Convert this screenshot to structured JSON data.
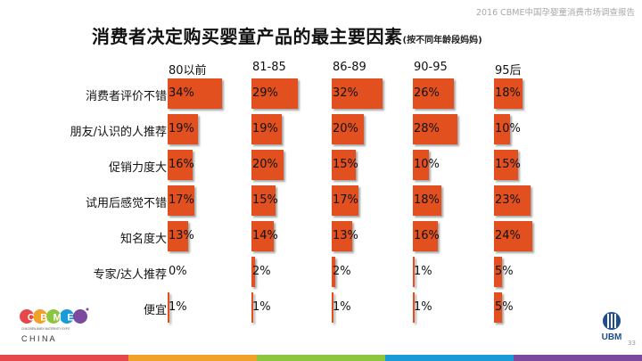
{
  "header": {
    "caption": "2016 CBME中国孕婴童消费市场调查报告",
    "title": "消费者决定购买婴童产品的最主要因素",
    "subtitle": "(按不同年龄段妈妈)"
  },
  "chart_data": {
    "type": "bar",
    "title": "消费者决定购买婴童产品的最主要因素",
    "subtitle": "(按不同年龄段妈妈)",
    "categories": [
      "消费者评价不错",
      "朋友/认识的人推荐",
      "促销力度大",
      "试用后感觉不错",
      "知名度大",
      "专家/达人推荐",
      "便宜"
    ],
    "series": [
      {
        "name": "80以前",
        "values": [
          34,
          19,
          16,
          17,
          13,
          0,
          1
        ]
      },
      {
        "name": "81-85",
        "values": [
          29,
          19,
          20,
          15,
          14,
          2,
          1
        ]
      },
      {
        "name": "86-89",
        "values": [
          32,
          20,
          15,
          17,
          13,
          2,
          1
        ]
      },
      {
        "name": "90-95",
        "values": [
          26,
          28,
          10,
          18,
          16,
          1,
          1
        ]
      },
      {
        "name": "95后",
        "values": [
          18,
          10,
          15,
          23,
          24,
          5,
          5
        ]
      }
    ],
    "unit": "%",
    "bar_color": "#e2501f"
  },
  "logos": {
    "cbme_text": "CBME",
    "cbme_sub": "C H I N A",
    "cbme_tagline": "CHILDREN BABY MATERNITY EXPO",
    "ubm_text": "UBM"
  },
  "footer": {
    "page_number": "33",
    "band_colors": [
      "#e5474a",
      "#f0a12a",
      "#8cc63f",
      "#1a9ad6",
      "#7b4a9e"
    ]
  }
}
